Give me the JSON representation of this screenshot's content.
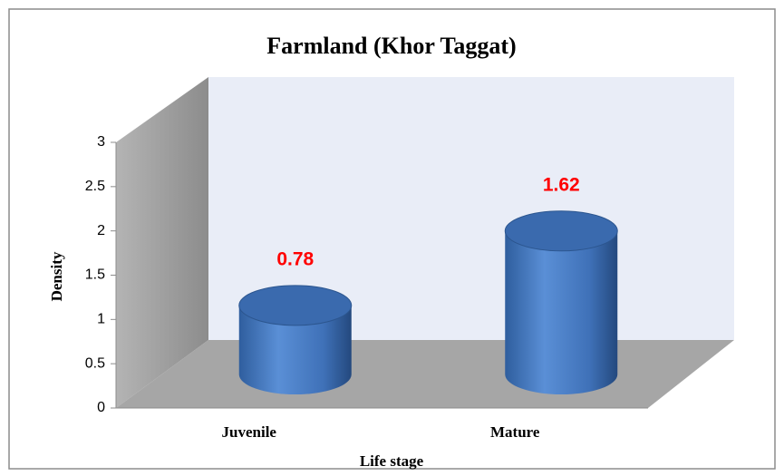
{
  "chart_data": {
    "type": "bar3d",
    "title": "Farmland (Khor Taggat)",
    "x_label": "Life stage",
    "y_label": "Density",
    "categories": [
      "Juvenile",
      "Mature"
    ],
    "values": [
      0.78,
      1.62
    ],
    "color": "#4a7ec4",
    "label_color": "#ff0000",
    "ylim": [
      0,
      3
    ],
    "yticks": [
      0,
      0.5,
      1,
      1.5,
      2,
      2.5,
      3
    ]
  }
}
